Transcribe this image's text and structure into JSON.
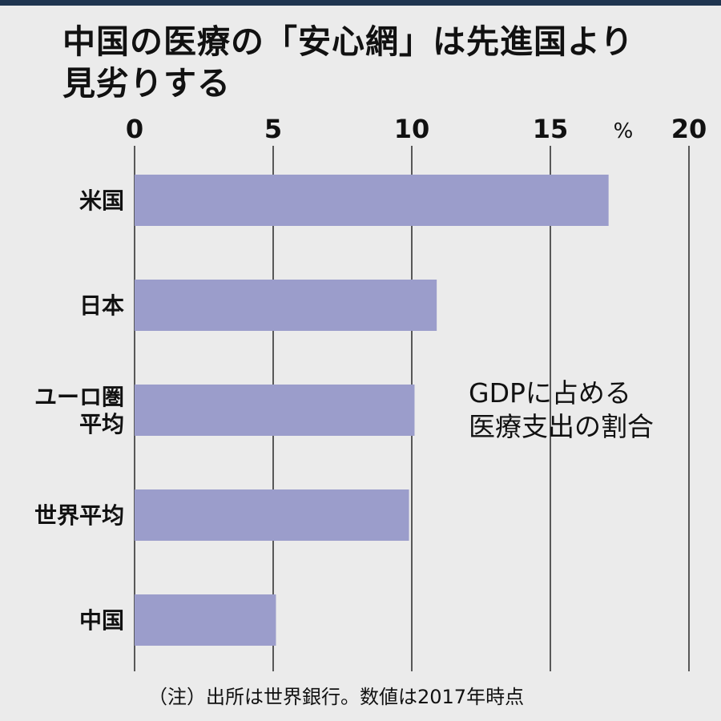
{
  "title_lines": [
    "中国の医療の「安心網」は先進国より",
    "見劣りする"
  ],
  "chart_data": {
    "type": "bar",
    "orientation": "horizontal",
    "title": "中国の医療の「安心網」は先進国より見劣りする",
    "categories": [
      [
        "米国"
      ],
      [
        "日本"
      ],
      [
        "ユーロ圏",
        "平均"
      ],
      [
        "世界平均"
      ],
      [
        "中国"
      ]
    ],
    "values": [
      17.1,
      10.9,
      10.1,
      9.9,
      5.1
    ],
    "unit": "%",
    "xlim": [
      0,
      20
    ],
    "xticks": [
      "0",
      "5",
      "10",
      "15",
      "20"
    ],
    "grid": true,
    "bar_color": "#9b9dcb",
    "annotation": [
      "GDPに占める",
      "医療支出の割合"
    ],
    "note": "（注）出所は世界銀行。数値は2017年時点"
  }
}
